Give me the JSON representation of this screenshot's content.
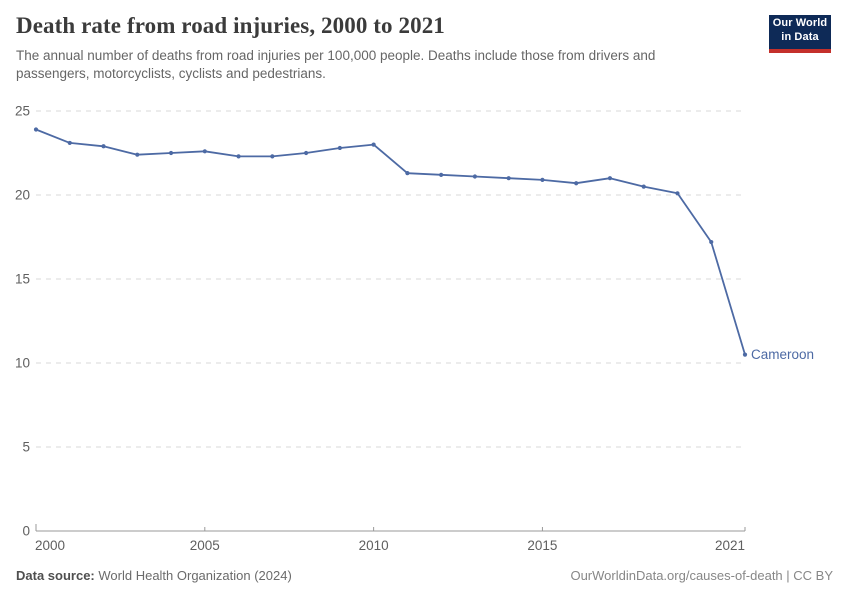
{
  "header": {
    "title": "Death rate from road injuries, 2000 to 2021",
    "subtitle": "The annual number of deaths from road injuries per 100,000 people. Deaths include those from drivers and passengers, motorcyclists, cyclists and pedestrians.",
    "logo": {
      "line1": "Our World",
      "line2": "in Data",
      "bg_color": "#0E2A57",
      "accent_color": "#C4302B"
    }
  },
  "chart_data": {
    "type": "line",
    "title": "Death rate from road injuries, 2000 to 2021",
    "xlabel": "",
    "ylabel": "",
    "xlim": [
      2000,
      2021
    ],
    "ylim": [
      0,
      25
    ],
    "x_ticks": [
      2000,
      2005,
      2010,
      2015,
      2021
    ],
    "y_ticks": [
      0,
      5,
      10,
      15,
      20,
      25
    ],
    "grid": "horizontal-dashed",
    "grid_color": "#d8d8d8",
    "axis_color": "#999999",
    "tick_label_color": "#5f5f5f",
    "legend_position": "end-of-line-label",
    "x": [
      2000,
      2001,
      2002,
      2003,
      2004,
      2005,
      2006,
      2007,
      2008,
      2009,
      2010,
      2011,
      2012,
      2013,
      2014,
      2015,
      2016,
      2017,
      2018,
      2019,
      2020,
      2021
    ],
    "series": [
      {
        "name": "Cameroon",
        "color": "#4D6AA4",
        "values": [
          23.9,
          23.1,
          22.9,
          22.4,
          22.5,
          22.6,
          22.3,
          22.3,
          22.5,
          22.8,
          23.0,
          21.3,
          21.2,
          21.1,
          21.0,
          20.9,
          20.7,
          21.0,
          20.5,
          20.1,
          17.2,
          10.5
        ]
      }
    ]
  },
  "footer": {
    "datasource_label": "Data source:",
    "datasource_value": "World Health Organization (2024)",
    "attribution": "OurWorldinData.org/causes-of-death | CC BY"
  }
}
